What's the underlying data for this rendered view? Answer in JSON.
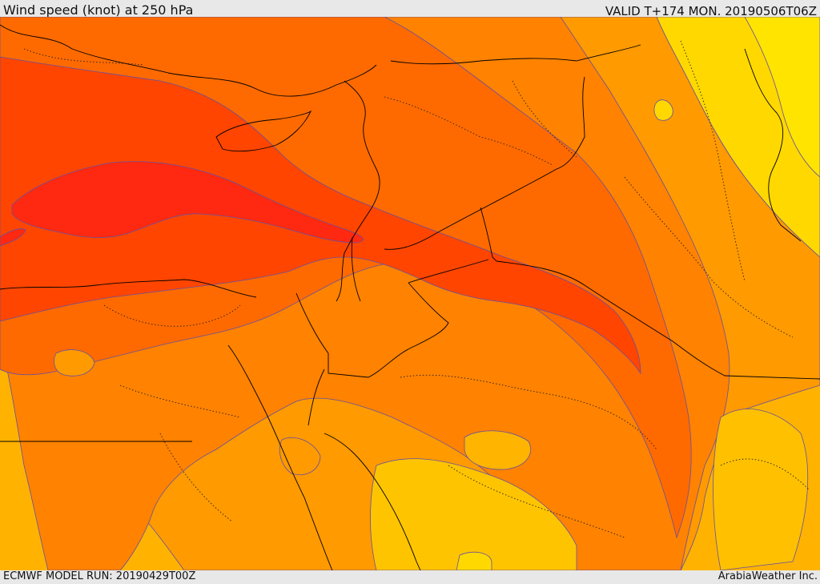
{
  "header": {
    "title": "Wind speed (knot) at 250 hPa",
    "valid": "VALID T+174 MON. 20190506T06Z"
  },
  "footer": {
    "model_run": "ECMWF MODEL RUN: 20190429T00Z",
    "credit": "ArabiaWeather Inc."
  },
  "colors": {
    "band_yellow": "#ffe000",
    "band_light_orange": "#ffc000",
    "band_orange": "#ff9900",
    "band_orange_dark": "#ff8000",
    "band_orange_red": "#ff6a00",
    "band_red_orange": "#ff4500",
    "band_red": "#ff2a10",
    "contour_line": "#6650a0",
    "border_line": "#000000"
  }
}
